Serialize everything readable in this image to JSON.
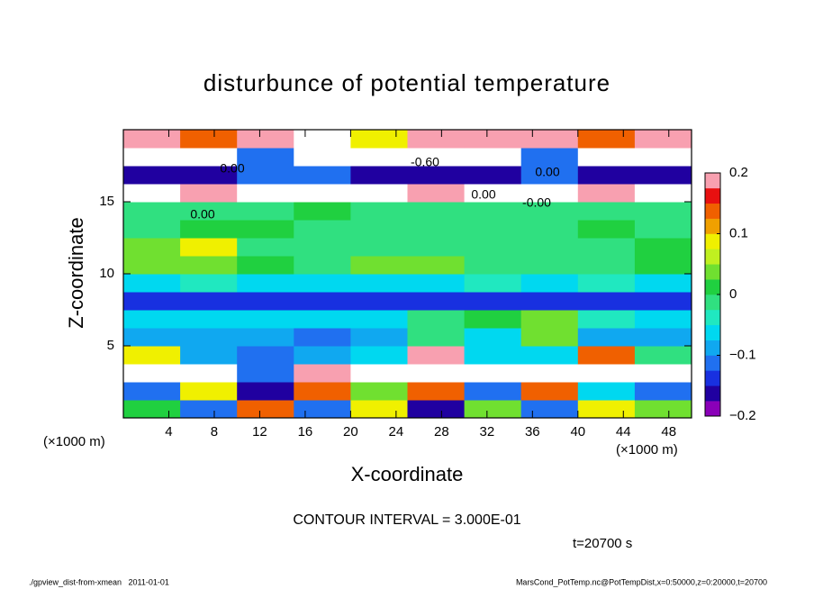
{
  "chart_data": {
    "type": "heatmap",
    "title": "disturbunce of potential temperature",
    "xlabel": "X-coordinate",
    "ylabel": "Z-coordinate",
    "x_unit": "(×1000 m)",
    "y_unit": "(×1000 m)",
    "contour_interval": "CONTOUR INTERVAL = 3.000E-01",
    "time_label": "t=20700 s",
    "footer_left": "./gpview_dist-from-xmean   2011-01-01",
    "footer_right": "MarsCond_PotTemp.nc@PotTempDist,x=0:50000,z=0:20000,t=20700",
    "contour_labels": [
      "0.00",
      "-0.60",
      "0.00",
      "0.00",
      "-0.00",
      "0.00"
    ],
    "xlim": [
      0,
      50
    ],
    "ylim": [
      0,
      20
    ],
    "xticks": [
      4,
      8,
      12,
      16,
      20,
      24,
      28,
      32,
      36,
      40,
      44,
      48
    ],
    "yticks": [
      5,
      10,
      15
    ],
    "x": [
      2.5,
      7.5,
      12.5,
      17.5,
      22.5,
      27.5,
      32.5,
      37.5,
      42.5,
      47.5
    ],
    "z": [
      0.625,
      1.875,
      3.125,
      4.375,
      5.625,
      6.875,
      8.125,
      9.375,
      10.625,
      11.875,
      13.125,
      14.375,
      15.625,
      16.875,
      18.125,
      19.375
    ],
    "values": [
      [
        0.02,
        -0.1,
        0.15,
        -0.1,
        0.1,
        -0.15,
        0.05,
        -0.1,
        0.1,
        0.05
      ],
      [
        -0.12,
        0.1,
        -0.15,
        0.15,
        0.05,
        0.15,
        -0.1,
        0.15,
        -0.05,
        -0.12
      ],
      [
        0.25,
        0.25,
        -0.1,
        0.2,
        0.25,
        0.25,
        0.25,
        0.25,
        0.25,
        0.25
      ],
      [
        0.1,
        -0.08,
        -0.1,
        -0.08,
        -0.05,
        0.2,
        -0.05,
        -0.05,
        0.15,
        -0.02
      ],
      [
        -0.08,
        -0.08,
        -0.08,
        -0.1,
        -0.09,
        -0.02,
        -0.05,
        0.05,
        -0.08,
        -0.08
      ],
      [
        -0.07,
        -0.07,
        -0.06,
        -0.06,
        -0.05,
        0,
        0.02,
        0.05,
        -0.04,
        -0.06
      ],
      [
        -0.13,
        -0.13,
        -0.13,
        -0.13,
        -0.13,
        -0.13,
        -0.13,
        -0.13,
        -0.13,
        -0.13
      ],
      [
        -0.05,
        -0.04,
        -0.05,
        -0.05,
        -0.05,
        -0.05,
        -0.04,
        -0.05,
        -0.04,
        -0.05
      ],
      [
        0.03,
        0.05,
        0.02,
        0,
        0.05,
        0.03,
        0,
        0,
        0,
        0.02
      ],
      [
        0.05,
        0.1,
        0,
        0,
        0,
        0,
        0,
        0,
        0,
        0.02
      ],
      [
        0,
        0.02,
        0.01,
        0,
        0,
        0,
        0,
        0,
        0.01,
        0
      ],
      [
        0,
        0,
        0,
        0.01,
        0,
        0,
        0,
        0,
        0,
        0
      ],
      [
        0.25,
        0.2,
        0.25,
        0.25,
        0.25,
        0.2,
        0.25,
        0.25,
        0.2,
        0.25
      ],
      [
        -0.15,
        -0.15,
        -0.12,
        -0.1,
        -0.15,
        -0.15,
        -0.15,
        -0.12,
        -0.15,
        -0.15
      ],
      [
        0.25,
        0.25,
        -0.1,
        -0.3,
        -0.3,
        -0.3,
        -0.25,
        -0.1,
        0.25,
        0.25
      ],
      [
        0.2,
        0.15,
        0.2,
        0.25,
        0.1,
        0.2,
        0.18,
        0.2,
        0.15,
        0.2
      ]
    ],
    "levels": [
      -0.2,
      -0.175,
      -0.15,
      -0.125,
      -0.1,
      -0.075,
      -0.05,
      -0.025,
      0,
      0.025,
      0.05,
      0.075,
      0.1,
      0.125,
      0.15,
      0.175,
      0.2
    ],
    "colors": [
      "#8a00b8",
      "#2000a0",
      "#1830e0",
      "#2070f0",
      "#10a8f0",
      "#00d8f0",
      "#20e8c0",
      "#30e080",
      "#20d040",
      "#70e030",
      "#c0f020",
      "#f0f000",
      "#f0a000",
      "#f06000",
      "#e81010",
      "#f8a0b0"
    ],
    "out_of_range_color": "#ffffff",
    "colorbar_ticks": [
      0.2,
      0.1,
      0,
      {
        "value": -0.1,
        "label": "−0.1"
      },
      {
        "value": -0.2,
        "label": "−0.2"
      }
    ]
  }
}
